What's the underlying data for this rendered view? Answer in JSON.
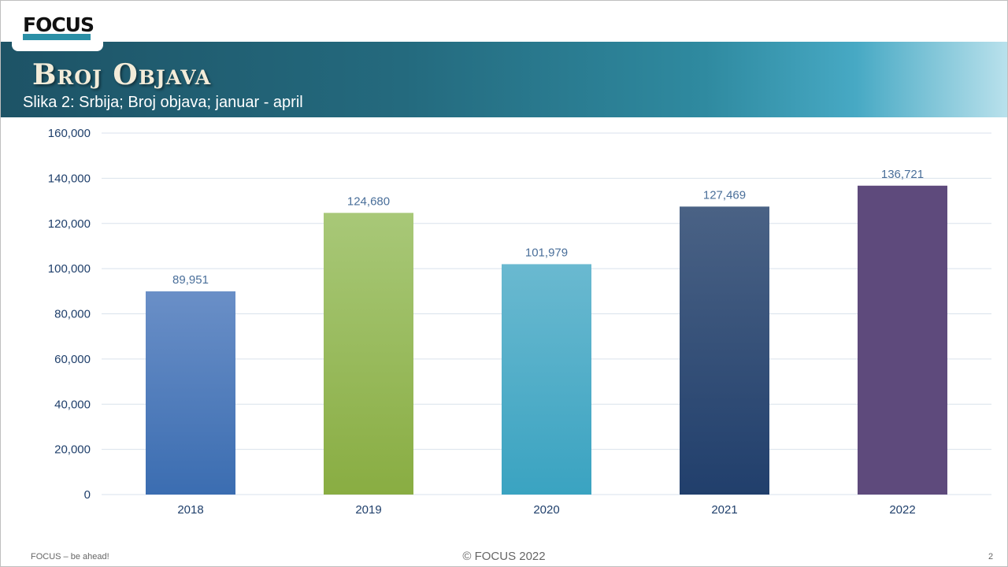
{
  "header": {
    "logo_text": "FOCUS",
    "title": "Broj Objava",
    "subtitle": "Slika 2: Srbija; Broj objava; januar - april"
  },
  "chart_data": {
    "type": "bar",
    "categories": [
      "2018",
      "2019",
      "2020",
      "2021",
      "2022"
    ],
    "values": [
      89951,
      124680,
      101979,
      127469,
      136721
    ],
    "value_labels": [
      "89,951",
      "124,680",
      "101,979",
      "127,469",
      "136,721"
    ],
    "y_ticks": [
      "0",
      "20,000",
      "40,000",
      "60,000",
      "80,000",
      "100,000",
      "120,000",
      "140,000",
      "160,000"
    ],
    "ylim": [
      0,
      160000
    ],
    "grid": true,
    "legend": false,
    "bar_colors": [
      [
        "#6a8fc7",
        "#3b6db1"
      ],
      [
        "#a8c878",
        "#89ad42"
      ],
      [
        "#6ab9d0",
        "#3aa3c1"
      ],
      [
        "#4a6285",
        "#213f6c"
      ],
      [
        "#5e4a7c",
        "#5e4a7c"
      ]
    ]
  },
  "footer": {
    "left": "FOCUS – be ahead!",
    "center": "© FOCUS 2022",
    "page_number": "2"
  }
}
